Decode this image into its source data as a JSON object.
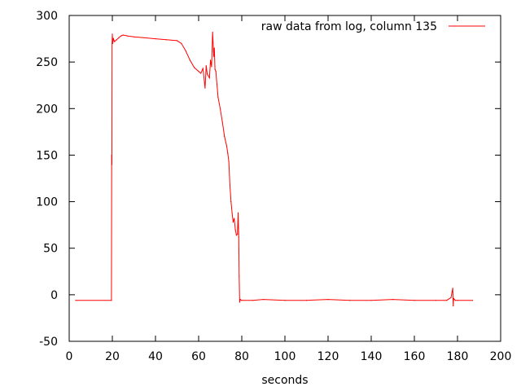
{
  "chart_data": {
    "type": "line",
    "title": "",
    "xlabel": "seconds",
    "ylabel": "",
    "xlim": [
      0,
      200
    ],
    "ylim": [
      -50,
      300
    ],
    "x_ticks": [
      0,
      20,
      40,
      60,
      80,
      100,
      120,
      140,
      160,
      180,
      200
    ],
    "y_ticks": [
      -50,
      0,
      50,
      100,
      150,
      200,
      250,
      300
    ],
    "x_tick_labels": [
      "0",
      "20",
      "40",
      "60",
      "80",
      "100",
      "120",
      "140",
      "160",
      "180",
      "200"
    ],
    "y_tick_labels": [
      "-50",
      "0",
      "50",
      "100",
      "150",
      "200",
      "250",
      "300"
    ],
    "grid": false,
    "legend_position": "top-right",
    "series": [
      {
        "name": "raw data from log, column 135",
        "color": "#ff0000",
        "x": [
          3,
          19.6,
          19.7,
          19.8,
          19.9,
          20.0,
          20.2,
          20.5,
          21,
          22,
          23,
          24,
          25,
          27,
          30,
          35,
          40,
          45,
          50,
          52,
          54,
          56,
          58,
          60,
          61,
          62,
          63,
          63.5,
          64,
          65,
          65.5,
          66,
          66.5,
          67,
          67.3,
          67.6,
          68,
          68.5,
          69,
          70,
          71,
          72,
          73,
          73.5,
          74,
          74.5,
          75,
          75.5,
          76,
          76.5,
          77,
          77.5,
          78,
          78.3,
          78.6,
          78.8,
          79,
          79.3,
          80,
          85,
          90,
          100,
          110,
          120,
          130,
          140,
          150,
          160,
          170,
          175,
          177,
          177.8,
          178,
          178.2,
          179,
          180,
          187
        ],
        "y": [
          -6,
          -6,
          150,
          140,
          270,
          280,
          270,
          275,
          272,
          274,
          276,
          278,
          279,
          278,
          277,
          276,
          275,
          274,
          273,
          270,
          262,
          252,
          244,
          240,
          238,
          243,
          222,
          246,
          237,
          233,
          252,
          245,
          282,
          256,
          265,
          242,
          240,
          226,
          212,
          200,
          186,
          170,
          160,
          152,
          143,
          118,
          100,
          88,
          78,
          82,
          70,
          64,
          65,
          88,
          62,
          20,
          -8,
          -5,
          -6,
          -6,
          -5,
          -6,
          -6,
          -5,
          -6,
          -6,
          -5,
          -6,
          -6,
          -6,
          -3,
          7,
          -12,
          -4,
          -6,
          -6,
          -6
        ]
      }
    ]
  }
}
